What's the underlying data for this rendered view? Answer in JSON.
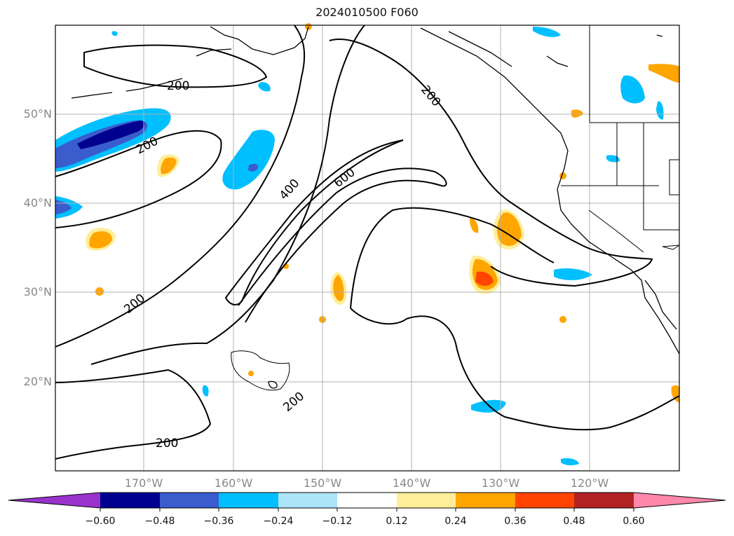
{
  "map": {
    "title": "2024010500 F060",
    "lat_labels": [
      "50°N",
      "40°N",
      "30°N",
      "20°N"
    ],
    "lon_labels": [
      "170°W",
      "160°W",
      "150°W",
      "140°W",
      "130°W",
      "120°W"
    ],
    "contour_labels": [
      "200",
      "200",
      "200",
      "200",
      "400",
      "600",
      "200",
      "200"
    ]
  },
  "colorbar": {
    "ticks": [
      "−0.60",
      "−0.48",
      "−0.36",
      "−0.24",
      "−0.12",
      "0.12",
      "0.24",
      "0.36",
      "0.48",
      "0.60"
    ],
    "colors": [
      "#9933cc",
      "#000090",
      "#3a5ccc",
      "#00bfff",
      "#ade4fa",
      "#ffffff",
      "#ffee99",
      "#ffa500",
      "#ff4500",
      "#b22222",
      "#ff88aa"
    ]
  }
}
